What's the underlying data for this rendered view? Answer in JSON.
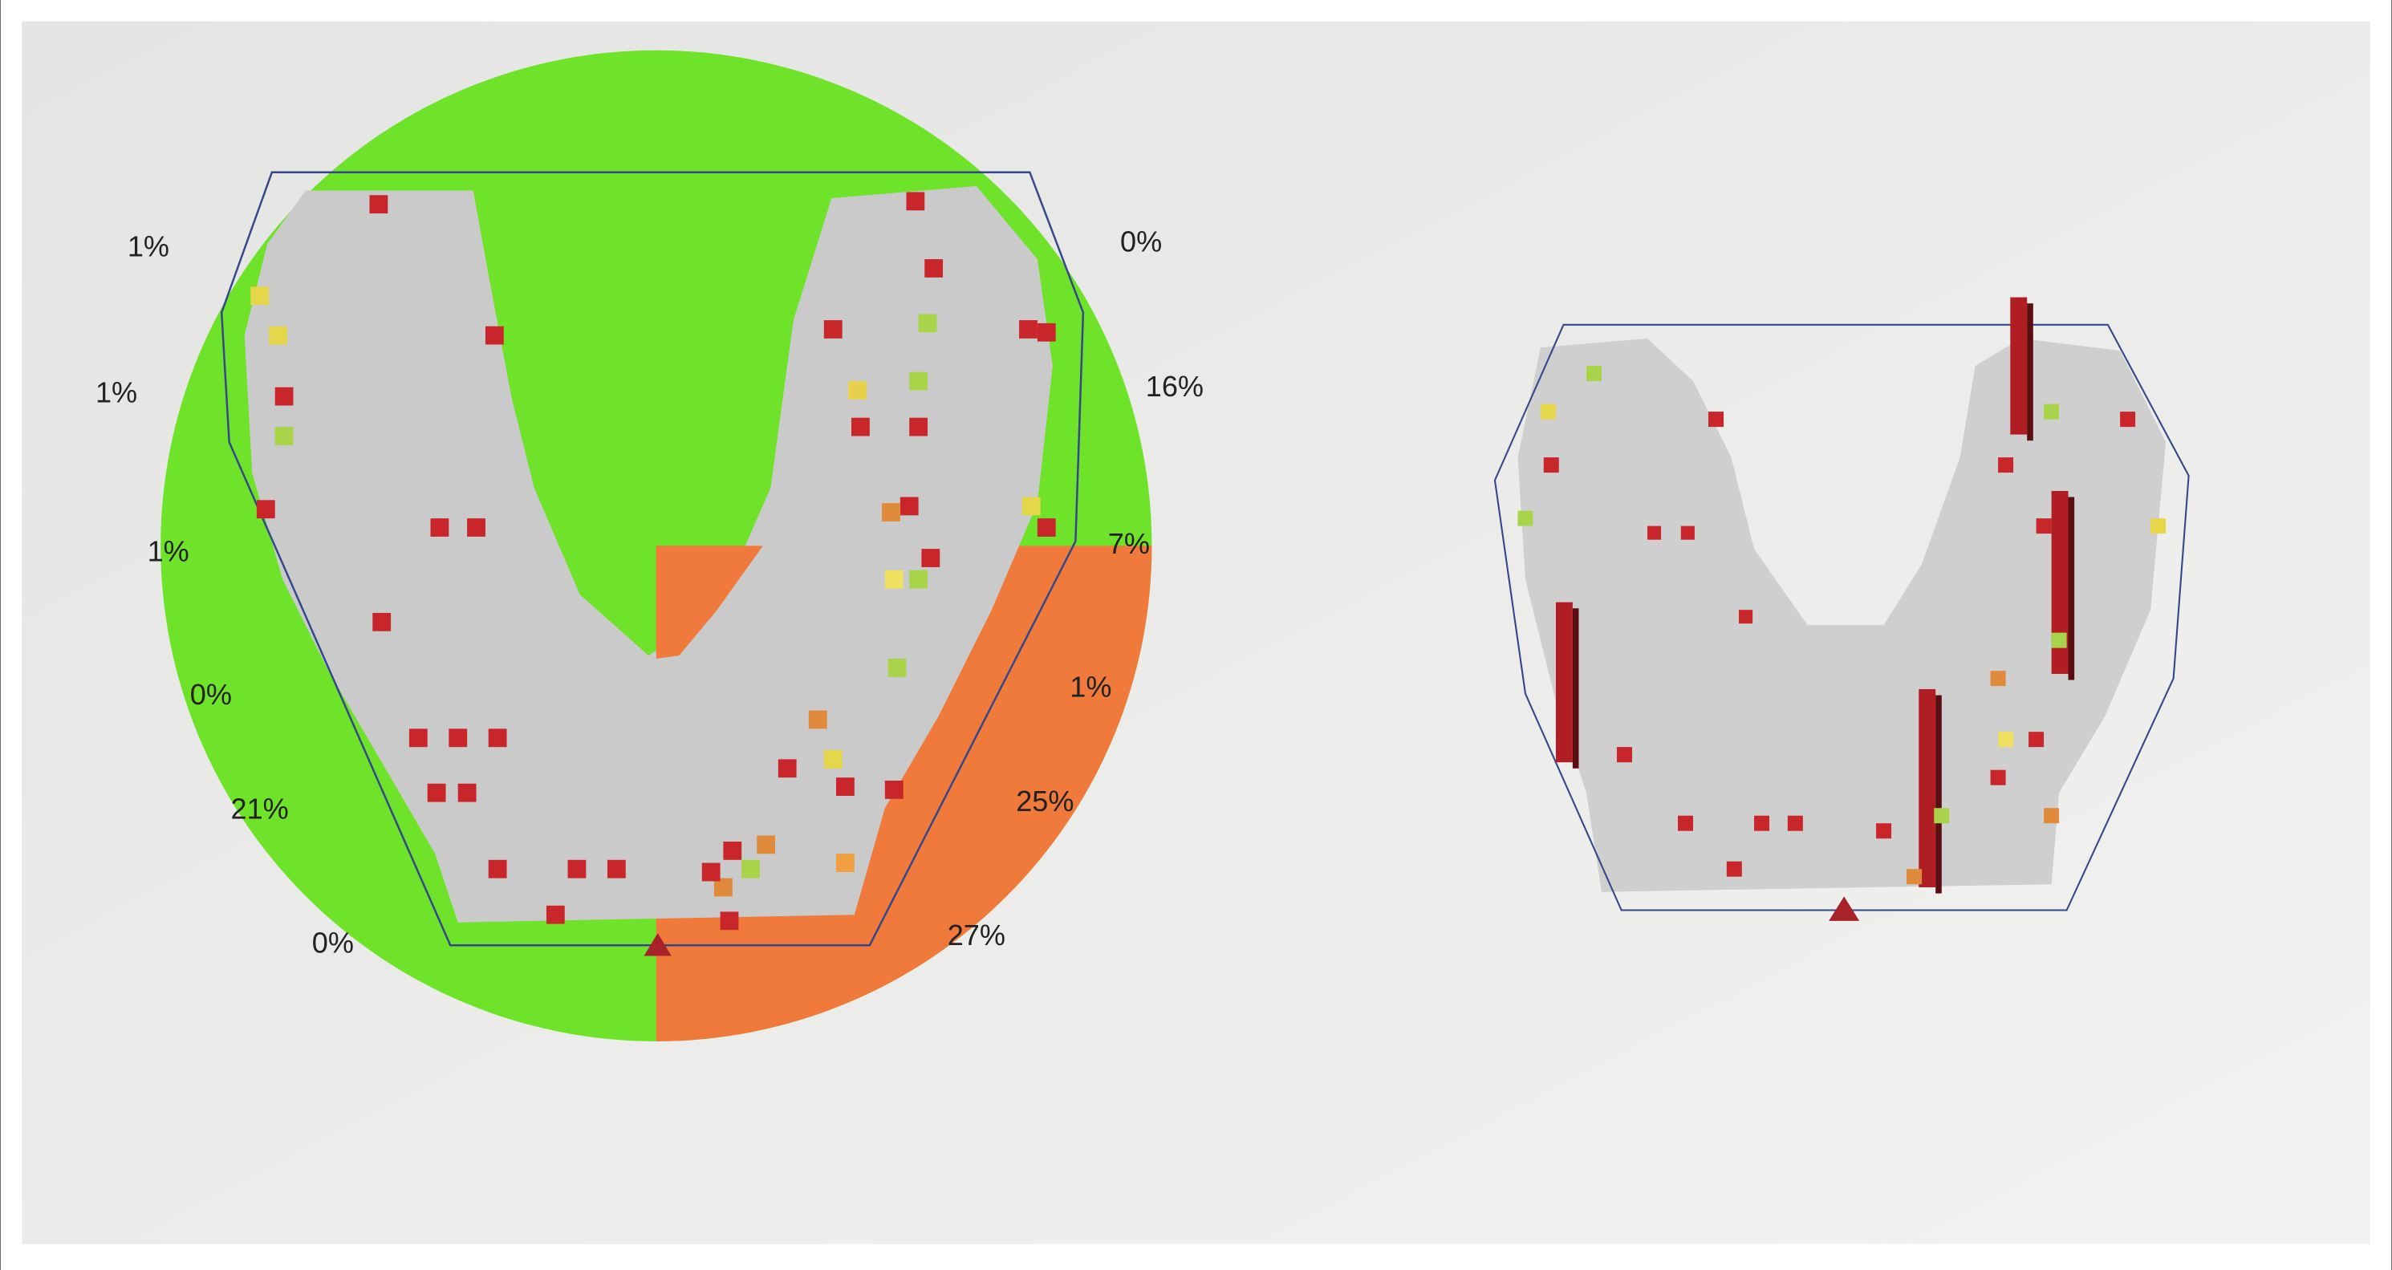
{
  "occlusion_map": {
    "left_labels": [
      "1%",
      "1%",
      "1%",
      "0%",
      "21%",
      "0%"
    ],
    "right_labels": [
      "0%",
      "16%",
      "7%",
      "1%",
      "25%",
      "27%"
    ]
  }
}
